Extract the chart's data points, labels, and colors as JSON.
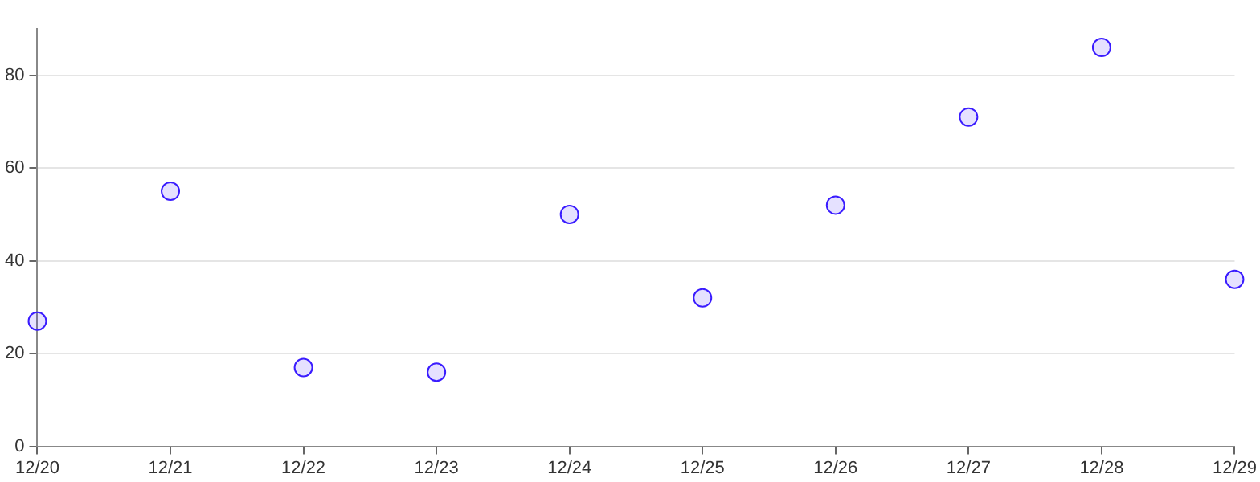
{
  "chart_data": {
    "type": "scatter",
    "categories": [
      "12/20",
      "12/21",
      "12/22",
      "12/23",
      "12/24",
      "12/25",
      "12/26",
      "12/27",
      "12/28",
      "12/29"
    ],
    "series": [
      {
        "color": "#3a1cff",
        "values": [
          27,
          55,
          17,
          16,
          50,
          32,
          52,
          71,
          86,
          36
        ]
      }
    ],
    "ylim": [
      0,
      90
    ],
    "yticks": [
      0,
      20,
      40,
      60,
      80
    ],
    "grid": "y",
    "legend": false,
    "marker": "circle"
  }
}
